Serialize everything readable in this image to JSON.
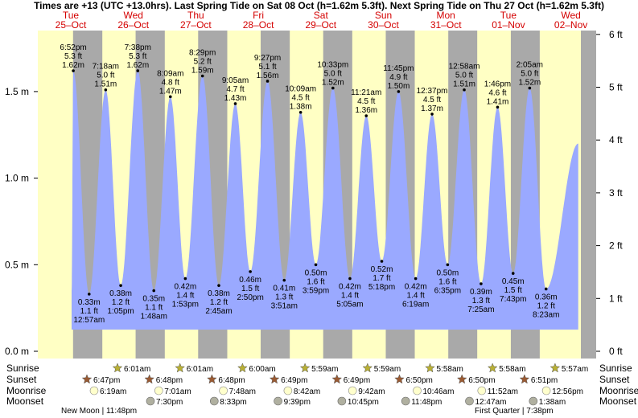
{
  "title": "Times are +13 (UTC +13.0hrs). Last Spring Tide on Sat 08 Oct (h=1.62m 5.3ft). Next Spring Tide on Thu 27 Oct (h=1.62m 5.3ft)",
  "colors": {
    "day": "#ffffc4",
    "night": "#a9a9a9",
    "tide_fill": "#9aa9ff",
    "day_label": "#d40000",
    "sunrise_star": "#b9b035",
    "sunset_star": "#9a5a32",
    "moonrise": "#ffffcc",
    "moonset": "#b0b0a0"
  },
  "day_labels": [
    {
      "dow": "Tue",
      "date": "25–Oct"
    },
    {
      "dow": "Wed",
      "date": "26–Oct"
    },
    {
      "dow": "Thu",
      "date": "27–Oct"
    },
    {
      "dow": "Fri",
      "date": "28–Oct"
    },
    {
      "dow": "Sat",
      "date": "29–Oct"
    },
    {
      "dow": "Sun",
      "date": "30–Oct"
    },
    {
      "dow": "Mon",
      "date": "31–Oct"
    },
    {
      "dow": "Tue",
      "date": "01–Nov"
    },
    {
      "dow": "Wed",
      "date": "02–Nov"
    }
  ],
  "row_labels": [
    "Sunrise",
    "Sunset",
    "Moonrise",
    "Moonset"
  ],
  "sunrise": [
    "6:01am",
    "6:01am",
    "6:00am",
    "5:59am",
    "5:59am",
    "5:58am",
    "5:58am",
    "5:57am"
  ],
  "sunset": [
    "6:47pm",
    "6:48pm",
    "6:48pm",
    "6:49pm",
    "6:49pm",
    "6:50pm",
    "6:50pm",
    "6:51pm"
  ],
  "moonrise": [
    "6:19am",
    "7:01am",
    "7:48am",
    "8:42am",
    "9:42am",
    "10:46am",
    "11:52am",
    "12:56pm"
  ],
  "moonset": [
    "7:30pm",
    "8:33pm",
    "9:39pm",
    "10:45pm",
    "11:48pm",
    "12:47am",
    "1:38am"
  ],
  "moon_phases": [
    {
      "name": "New Moon",
      "time": "11:48pm"
    },
    {
      "name": "First Quarter",
      "time": "7:38pm"
    }
  ],
  "chart_data": {
    "type": "area",
    "ylabel_left": "m",
    "ylabel_right": "ft",
    "y_ticks_m": [
      "0.0 m",
      "0.5 m",
      "1.0 m",
      "1.5 m"
    ],
    "y_ticks_ft": [
      "0 ft",
      "1 ft",
      "2 ft",
      "3 ft",
      "4 ft",
      "5 ft",
      "6 ft"
    ],
    "ylim_m": [
      0,
      1.83
    ],
    "tides": [
      {
        "day": "25-Oct",
        "time": "6:52 pm",
        "m": 1.62,
        "ft": "5.3 ft",
        "label_m": "1.62 m",
        "type": "high"
      },
      {
        "day": "26-Oct",
        "time": "12:57 am",
        "m": 0.33,
        "ft": "1.1 ft",
        "label_m": "0.33 m",
        "type": "low"
      },
      {
        "day": "26-Oct",
        "time": "7:18 am",
        "m": 1.51,
        "ft": "5.0 ft",
        "label_m": "1.51 m",
        "type": "high"
      },
      {
        "day": "26-Oct",
        "time": "1:05 pm",
        "m": 0.38,
        "ft": "1.2 ft",
        "label_m": "0.38 m",
        "type": "low"
      },
      {
        "day": "26-Oct",
        "time": "7:38 pm",
        "m": 1.62,
        "ft": "5.3 ft",
        "label_m": "1.62 m",
        "type": "high"
      },
      {
        "day": "27-Oct",
        "time": "1:48 am",
        "m": 0.35,
        "ft": "1.1 ft",
        "label_m": "0.35 m",
        "type": "low"
      },
      {
        "day": "27-Oct",
        "time": "8:09 am",
        "m": 1.47,
        "ft": "4.8 ft",
        "label_m": "1.47 m",
        "type": "high"
      },
      {
        "day": "27-Oct",
        "time": "1:53 pm",
        "m": 0.42,
        "ft": "1.4 ft",
        "label_m": "0.42 m",
        "type": "low"
      },
      {
        "day": "27-Oct",
        "time": "8:29 pm",
        "m": 1.59,
        "ft": "5.2 ft",
        "label_m": "1.59 m",
        "type": "high"
      },
      {
        "day": "28-Oct",
        "time": "2:45 am",
        "m": 0.38,
        "ft": "1.2 ft",
        "label_m": "0.38 m",
        "type": "low"
      },
      {
        "day": "28-Oct",
        "time": "9:05 am",
        "m": 1.43,
        "ft": "4.7 ft",
        "label_m": "1.43 m",
        "type": "high"
      },
      {
        "day": "28-Oct",
        "time": "2:50 pm",
        "m": 0.46,
        "ft": "1.5 ft",
        "label_m": "0.46 m",
        "type": "low"
      },
      {
        "day": "28-Oct",
        "time": "9:27 pm",
        "m": 1.56,
        "ft": "5.1 ft",
        "label_m": "1.56 m",
        "type": "high"
      },
      {
        "day": "29-Oct",
        "time": "3:51 am",
        "m": 0.41,
        "ft": "1.3 ft",
        "label_m": "0.41 m",
        "type": "low"
      },
      {
        "day": "29-Oct",
        "time": "10:09 am",
        "m": 1.38,
        "ft": "4.5 ft",
        "label_m": "1.38 m",
        "type": "high"
      },
      {
        "day": "29-Oct",
        "time": "3:59 pm",
        "m": 0.5,
        "ft": "1.6 ft",
        "label_m": "0.50 m",
        "type": "low"
      },
      {
        "day": "29-Oct",
        "time": "10:33 pm",
        "m": 1.52,
        "ft": "5.0 ft",
        "label_m": "1.52 m",
        "type": "high"
      },
      {
        "day": "30-Oct",
        "time": "5:05 am",
        "m": 0.42,
        "ft": "1.4 ft",
        "label_m": "0.42 m",
        "type": "low"
      },
      {
        "day": "30-Oct",
        "time": "11:21 am",
        "m": 1.36,
        "ft": "4.5 ft",
        "label_m": "1.36 m",
        "type": "high"
      },
      {
        "day": "30-Oct",
        "time": "5:18 pm",
        "m": 0.52,
        "ft": "1.7 ft",
        "label_m": "0.52 m",
        "type": "low"
      },
      {
        "day": "30-Oct",
        "time": "11:45 pm",
        "m": 1.5,
        "ft": "4.9 ft",
        "label_m": "1.50 m",
        "type": "high"
      },
      {
        "day": "31-Oct",
        "time": "6:19 am",
        "m": 0.42,
        "ft": "1.4 ft",
        "label_m": "0.42 m",
        "type": "low"
      },
      {
        "day": "31-Oct",
        "time": "12:37 pm",
        "m": 1.37,
        "ft": "4.5 ft",
        "label_m": "1.37 m",
        "type": "high"
      },
      {
        "day": "31-Oct",
        "time": "6:35 pm",
        "m": 0.5,
        "ft": "1.6 ft",
        "label_m": "0.50 m",
        "type": "low"
      },
      {
        "day": "01-Nov",
        "time": "12:58 am",
        "m": 1.51,
        "ft": "5.0 ft",
        "label_m": "1.51 m",
        "type": "high"
      },
      {
        "day": "01-Nov",
        "time": "7:25 am",
        "m": 0.39,
        "ft": "1.3 ft",
        "label_m": "0.39 m",
        "type": "low"
      },
      {
        "day": "01-Nov",
        "time": "1:46 pm",
        "m": 1.41,
        "ft": "4.6 ft",
        "label_m": "1.41 m",
        "type": "high"
      },
      {
        "day": "01-Nov",
        "time": "7:43 pm",
        "m": 0.45,
        "ft": "1.5 ft",
        "label_m": "0.45 m",
        "type": "low"
      },
      {
        "day": "02-Nov",
        "time": "2:05 am",
        "m": 1.52,
        "ft": "5.0 ft",
        "label_m": "1.52 m",
        "type": "high"
      },
      {
        "day": "02-Nov",
        "time": "8:23 am",
        "m": 0.36,
        "ft": "1.2 ft",
        "label_m": "0.36 m",
        "type": "low"
      }
    ]
  }
}
